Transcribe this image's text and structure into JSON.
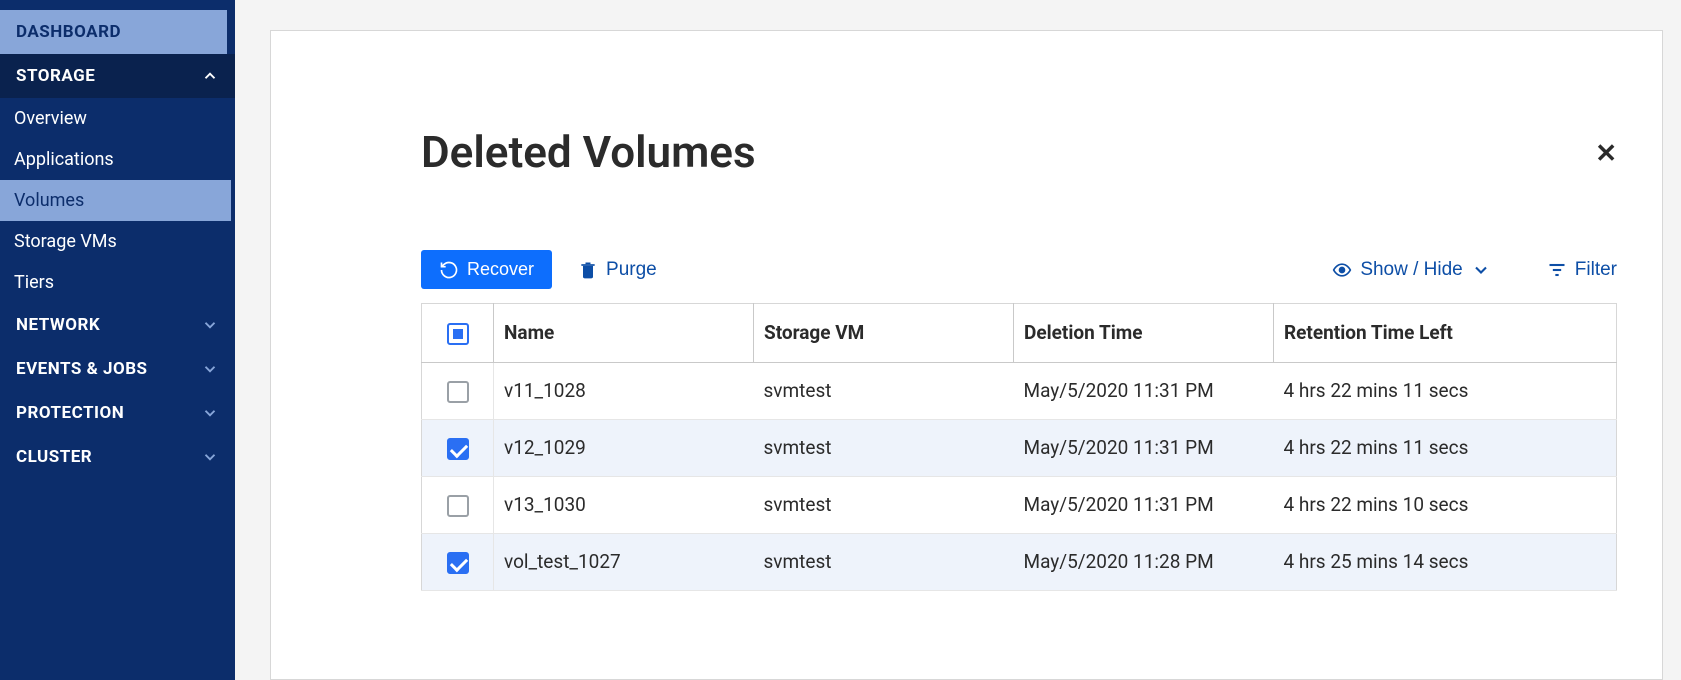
{
  "sidebar": {
    "dashboard": "DASHBOARD",
    "storage": "STORAGE",
    "storage_subs": [
      {
        "label": "Overview",
        "selected": false
      },
      {
        "label": "Applications",
        "selected": false
      },
      {
        "label": "Volumes",
        "selected": true
      },
      {
        "label": "Storage VMs",
        "selected": false
      },
      {
        "label": "Tiers",
        "selected": false
      }
    ],
    "sections": [
      {
        "label": "NETWORK"
      },
      {
        "label": "EVENTS & JOBS"
      },
      {
        "label": "PROTECTION"
      },
      {
        "label": "CLUSTER"
      }
    ]
  },
  "page": {
    "title": "Deleted Volumes"
  },
  "toolbar": {
    "recover": "Recover",
    "purge": "Purge",
    "showhide": "Show / Hide",
    "filter": "Filter"
  },
  "table": {
    "columns": {
      "name": "Name",
      "svm": "Storage VM",
      "deltime": "Deletion Time",
      "retention": "Retention Time Left"
    },
    "rows": [
      {
        "checked": false,
        "name": "v11_1028",
        "svm": "svmtest",
        "deltime": "May/5/2020 11:31 PM",
        "retention": "4 hrs 22 mins 11 secs"
      },
      {
        "checked": true,
        "name": "v12_1029",
        "svm": "svmtest",
        "deltime": "May/5/2020 11:31 PM",
        "retention": "4 hrs 22 mins 11 secs"
      },
      {
        "checked": false,
        "name": "v13_1030",
        "svm": "svmtest",
        "deltime": "May/5/2020 11:31 PM",
        "retention": "4 hrs 22 mins 10 secs"
      },
      {
        "checked": true,
        "name": "vol_test_1027",
        "svm": "svmtest",
        "deltime": "May/5/2020 11:28 PM",
        "retention": "4 hrs 25 mins 14 secs"
      }
    ],
    "header_check_state": "indeterminate"
  },
  "colors": {
    "sidebar_bg": "#0c2d6b",
    "sidebar_dark": "#0a224e",
    "sidebar_hilite": "#88a6d9",
    "primary_btn": "#0d6efd",
    "link_blue": "#0d4ea6",
    "checkbox_blue": "#2a6ff3",
    "row_selected_bg": "#eef3fb",
    "border": "#d7d7d7"
  }
}
